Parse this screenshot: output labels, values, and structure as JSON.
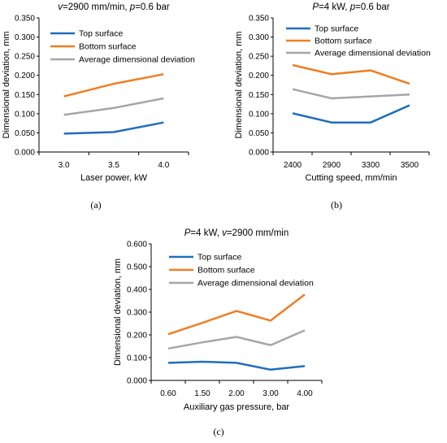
{
  "colors": {
    "top": "#1f6ebd",
    "bottom": "#f07d22",
    "average": "#a6a6a6",
    "axis": "#000000"
  },
  "chart_data": [
    {
      "type": "line",
      "panel": "(a)",
      "title_parts": [
        {
          "text": "v",
          "italic": true
        },
        {
          "text": "=2900 mm/min, ",
          "italic": false
        },
        {
          "text": "p",
          "italic": true
        },
        {
          "text": "=0.6 bar",
          "italic": false
        }
      ],
      "xlabel": "Laser power, kW",
      "ylabel": "Dimensional deviation, mm",
      "categories": [
        "3.0",
        "3.5",
        "4.0"
      ],
      "ylim": [
        0,
        0.35
      ],
      "yticks": [
        "0.000",
        "0.050",
        "0.100",
        "0.150",
        "0.200",
        "0.250",
        "0.300",
        "0.350"
      ],
      "grid": false,
      "legend": "top-left",
      "series": [
        {
          "name": "Top surface",
          "key": "top",
          "values": [
            0.048,
            0.052,
            0.077
          ]
        },
        {
          "name": "Bottom surface",
          "key": "bottom",
          "values": [
            0.145,
            0.178,
            0.203
          ]
        },
        {
          "name": "Average dimensional deviation",
          "key": "average",
          "values": [
            0.097,
            0.115,
            0.14
          ]
        }
      ]
    },
    {
      "type": "line",
      "panel": "(b)",
      "title_parts": [
        {
          "text": "P",
          "italic": true
        },
        {
          "text": "=4 kW, ",
          "italic": false
        },
        {
          "text": "p",
          "italic": true
        },
        {
          "text": "=0.6 bar",
          "italic": false
        }
      ],
      "xlabel": "Cutting speed, mm/min",
      "ylabel": "Dimensional deviation, mm",
      "categories": [
        "2400",
        "2900",
        "3300",
        "3500"
      ],
      "ylim": [
        0,
        0.35
      ],
      "yticks": [
        "0.000",
        "0.050",
        "0.100",
        "0.150",
        "0.200",
        "0.250",
        "0.300",
        "0.350"
      ],
      "grid": false,
      "legend": "top-left",
      "series": [
        {
          "name": "Top surface",
          "key": "top",
          "values": [
            0.101,
            0.077,
            0.077,
            0.122
          ]
        },
        {
          "name": "Bottom surface",
          "key": "bottom",
          "values": [
            0.227,
            0.203,
            0.213,
            0.178
          ]
        },
        {
          "name": "Average dimensional deviation",
          "key": "average",
          "values": [
            0.164,
            0.14,
            0.145,
            0.15
          ]
        }
      ]
    },
    {
      "type": "line",
      "panel": "(c)",
      "title_parts": [
        {
          "text": "P",
          "italic": true
        },
        {
          "text": "=4 kW, ",
          "italic": false
        },
        {
          "text": "v",
          "italic": true
        },
        {
          "text": "=2900 mm/min",
          "italic": false
        }
      ],
      "xlabel": "Auxiliary gas pressure, bar",
      "ylabel": "Dimensional deviation, mm",
      "categories": [
        "0.60",
        "1.50",
        "2.00",
        "3.00",
        "4.00"
      ],
      "ylim": [
        0,
        0.6
      ],
      "yticks": [
        "0.000",
        "0.100",
        "0.200",
        "0.300",
        "0.400",
        "0.500",
        "0.600"
      ],
      "grid": false,
      "legend": "top-left",
      "series": [
        {
          "name": "Top surface",
          "key": "top",
          "values": [
            0.077,
            0.082,
            0.077,
            0.047,
            0.063
          ]
        },
        {
          "name": "Bottom surface",
          "key": "bottom",
          "values": [
            0.203,
            0.253,
            0.305,
            0.263,
            0.378
          ]
        },
        {
          "name": "Average dimensional deviation",
          "key": "average",
          "values": [
            0.14,
            0.167,
            0.191,
            0.155,
            0.22
          ]
        }
      ]
    }
  ]
}
